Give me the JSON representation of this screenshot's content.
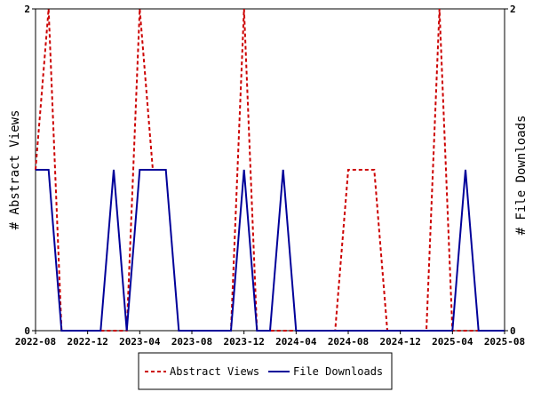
{
  "chart_data": {
    "type": "line",
    "x_tick_labels": [
      "2022-08",
      "2022-12",
      "2023-04",
      "2023-08",
      "2023-12",
      "2024-04",
      "2024-08",
      "2024-12",
      "2025-04",
      "2025-08"
    ],
    "xlim": [
      "2022-08",
      "2025-08"
    ],
    "y_left": {
      "label": "# Abstract Views",
      "lim": [
        0,
        2
      ],
      "ticks": [
        "0",
        "2"
      ]
    },
    "y_right": {
      "label": "# File Downloads",
      "lim": [
        0,
        2
      ],
      "ticks": [
        "0",
        "2"
      ]
    },
    "x": [
      "2022-08",
      "2022-09",
      "2022-10",
      "2022-11",
      "2022-12",
      "2023-01",
      "2023-02",
      "2023-03",
      "2023-04",
      "2023-05",
      "2023-06",
      "2023-07",
      "2023-08",
      "2023-09",
      "2023-10",
      "2023-11",
      "2023-12",
      "2024-01",
      "2024-02",
      "2024-03",
      "2024-04",
      "2024-05",
      "2024-06",
      "2024-07",
      "2024-08",
      "2024-09",
      "2024-10",
      "2024-11",
      "2024-12",
      "2025-01",
      "2025-02",
      "2025-03",
      "2025-04",
      "2025-05",
      "2025-06",
      "2025-07",
      "2025-08"
    ],
    "series": [
      {
        "name": "Abstract Views",
        "axis": "left",
        "color": "#cc0000",
        "style": "dashed",
        "values": [
          1,
          2,
          0,
          0,
          0,
          0,
          0,
          0,
          2,
          1,
          null,
          null,
          0,
          0,
          0,
          0,
          2,
          0,
          0,
          0,
          0,
          0,
          0,
          0,
          1,
          1,
          1,
          0,
          0,
          0,
          0,
          2,
          0,
          0,
          0,
          0,
          0
        ]
      },
      {
        "name": "File Downloads",
        "axis": "right",
        "color": "#000099",
        "style": "solid",
        "values": [
          1,
          1,
          0,
          0,
          0,
          0,
          1,
          0,
          1,
          1,
          1,
          0,
          0,
          0,
          0,
          0,
          1,
          0,
          0,
          1,
          0,
          0,
          0,
          0,
          0,
          0,
          0,
          0,
          0,
          0,
          0,
          0,
          0,
          1,
          0,
          0,
          0
        ]
      }
    ],
    "legend": {
      "placement": "bottom-center",
      "entries": [
        "Abstract Views",
        "File Downloads"
      ]
    },
    "grid": false
  }
}
